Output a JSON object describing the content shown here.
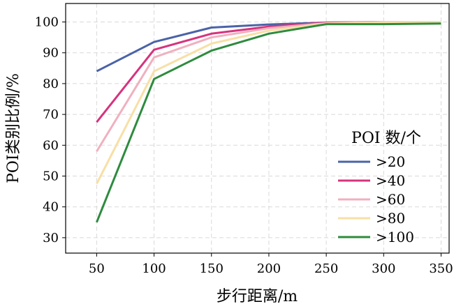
{
  "chart_data": {
    "type": "line",
    "xlabel": "步行距离/m",
    "ylabel": "POI类别比例/%",
    "x": [
      50,
      100,
      150,
      200,
      250,
      300,
      350
    ],
    "xticks": [
      50,
      100,
      150,
      200,
      250,
      300,
      350
    ],
    "yticks": [
      30,
      40,
      50,
      60,
      70,
      80,
      90,
      100
    ],
    "xlim": [
      23,
      357
    ],
    "ylim": [
      25,
      106
    ],
    "grid": true,
    "legend": {
      "title": "POI 数/个",
      "placement": "lower-right"
    },
    "series": [
      {
        "name": ">20",
        "color": "#4a63a8",
        "values": [
          84,
          93.5,
          98.2,
          99.2,
          99.8,
          100,
          100
        ]
      },
      {
        "name": ">40",
        "color": "#d6337e",
        "values": [
          67.5,
          91,
          96.2,
          98.5,
          99.8,
          100,
          100
        ]
      },
      {
        "name": ">60",
        "color": "#f0b0bf",
        "values": [
          58,
          88.5,
          95,
          98,
          99.6,
          100,
          100
        ]
      },
      {
        "name": ">80",
        "color": "#f8dfa6",
        "values": [
          47.5,
          84,
          93,
          97.2,
          99.5,
          99.9,
          100
        ]
      },
      {
        "name": ">100",
        "color": "#2e8b3e",
        "values": [
          35,
          81.5,
          90.7,
          96.2,
          99.3,
          99.3,
          99.5
        ]
      }
    ]
  }
}
